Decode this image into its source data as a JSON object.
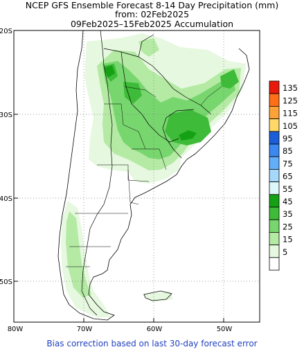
{
  "header": {
    "title_line1": "NCEP GFS Ensemble Forecast 8-14 Day Precipitation (mm)",
    "title_line2": "from: 02Feb2025",
    "title_line3": "09Feb2025–15Feb2025 Accumulation"
  },
  "axes": {
    "lat_labels": [
      "20S",
      "30S",
      "40S",
      "50S"
    ],
    "lon_labels": [
      "80W",
      "70W",
      "60W",
      "50W"
    ]
  },
  "legend": {
    "entries": [
      {
        "label": "135",
        "color": "#e81a0c"
      },
      {
        "label": "125",
        "color": "#ff6f18"
      },
      {
        "label": "115",
        "color": "#ffa338"
      },
      {
        "label": "105",
        "color": "#ffd86a"
      },
      {
        "label": "95",
        "color": "#1c5ed8"
      },
      {
        "label": "85",
        "color": "#3a88f0"
      },
      {
        "label": "75",
        "color": "#63aef8"
      },
      {
        "label": "65",
        "color": "#a6d8fb"
      },
      {
        "label": "55",
        "color": "#def7fb"
      },
      {
        "label": "45",
        "color": "#14a214"
      },
      {
        "label": "35",
        "color": "#3ebb38"
      },
      {
        "label": "25",
        "color": "#78d66e"
      },
      {
        "label": "15",
        "color": "#b4eaa4"
      },
      {
        "label": "5",
        "color": "#e6f8df"
      },
      {
        "label": "",
        "color": "#ffffff"
      }
    ]
  },
  "footer": {
    "note": "Bias correction based on last 30-day forecast error"
  }
}
